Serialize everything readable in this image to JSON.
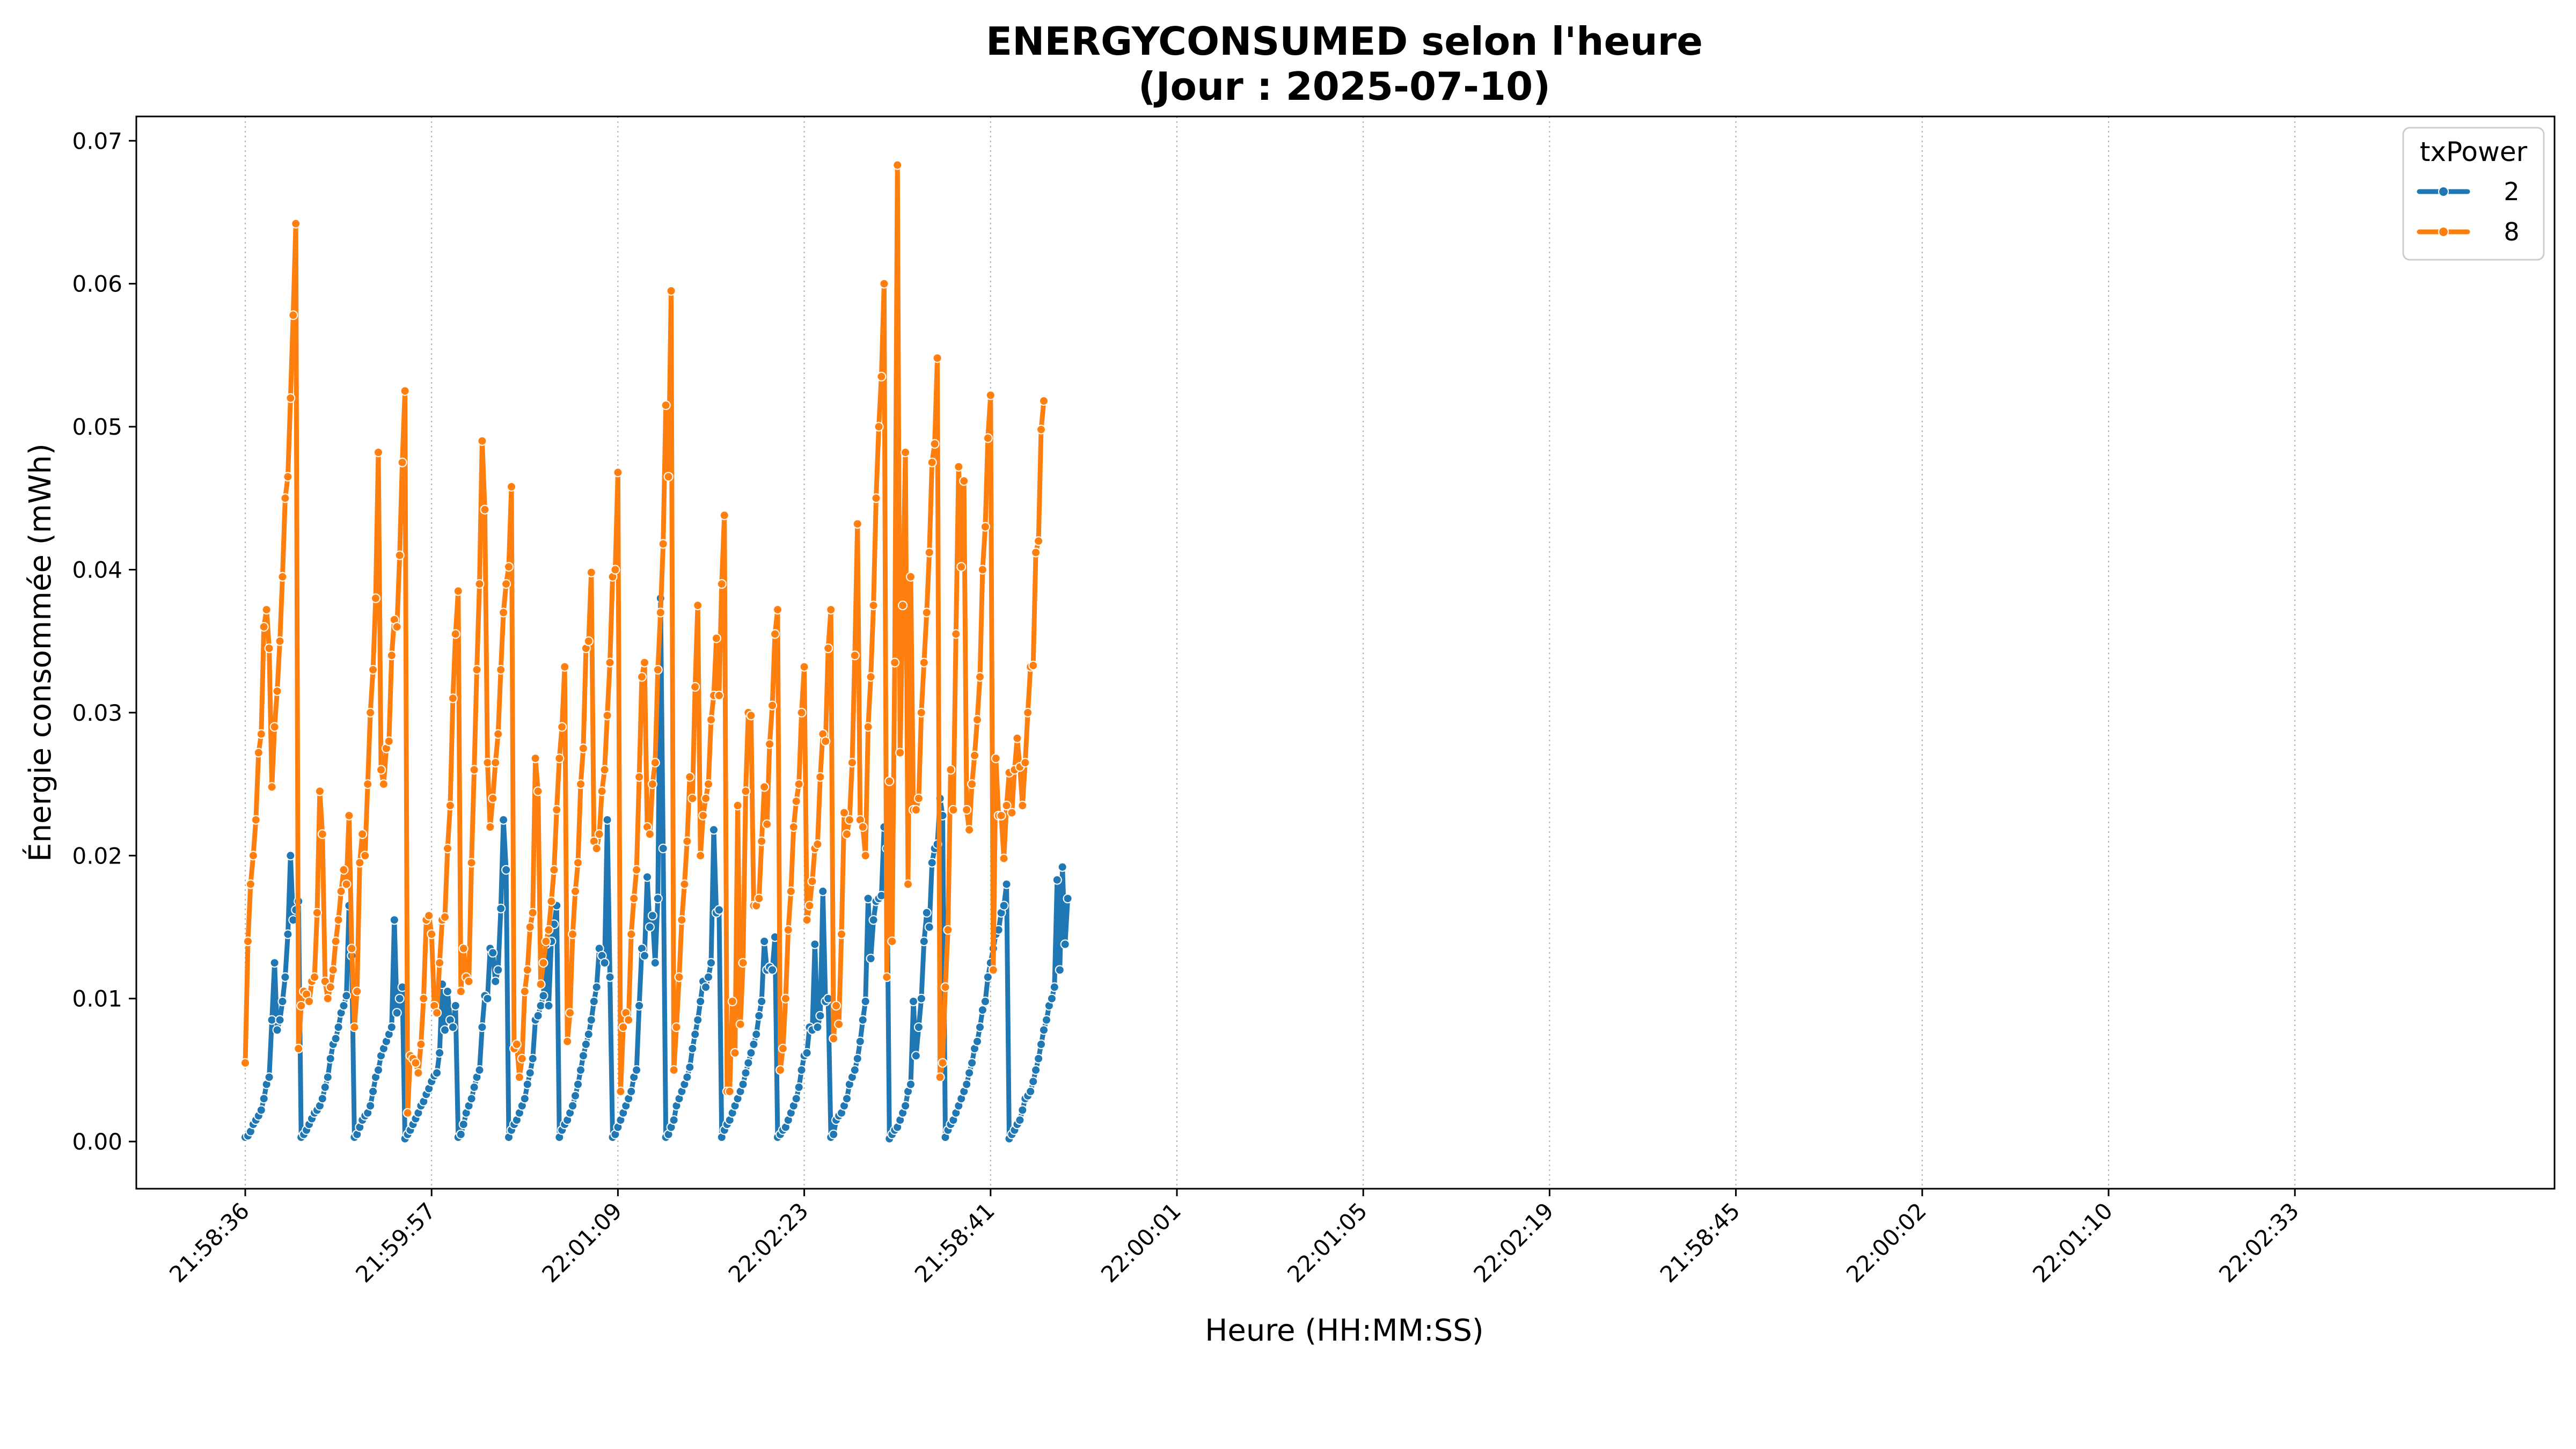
{
  "chart_data": {
    "type": "line",
    "title": "ENERGYCONSUMED selon l'heure",
    "subtitle": "(Jour : 2025-07-10)",
    "xlabel": "Heure (HH:MM:SS)",
    "ylabel": "Énergie consommée (mWh)",
    "x_tick_labels": [
      "21:58:36",
      "21:59:57",
      "22:01:09",
      "22:02:23",
      "21:58:41",
      "22:00:01",
      "22:01:05",
      "22:02:19",
      "21:58:45",
      "22:00:02",
      "22:01:10",
      "22:02:33"
    ],
    "y_ticks": [
      "0.00",
      "0.01",
      "0.02",
      "0.03",
      "0.04",
      "0.05",
      "0.06",
      "0.07"
    ],
    "ylim": [
      -0.0033,
      0.0717
    ],
    "grid": "vertical dotted at x ticks",
    "legend": {
      "title": "txPower",
      "placement": "top-right"
    },
    "series": [
      {
        "name": "2",
        "color": "#1f77b4",
        "values": [
          0.0003,
          0.0004,
          0.0007,
          0.0012,
          0.0015,
          0.0018,
          0.0022,
          0.003,
          0.004,
          0.0045,
          0.0085,
          0.0125,
          0.0078,
          0.0085,
          0.0098,
          0.0115,
          0.0145,
          0.02,
          0.0155,
          0.0162,
          0.0168,
          0.0003,
          0.0005,
          0.0008,
          0.0012,
          0.0016,
          0.002,
          0.0022,
          0.0025,
          0.003,
          0.0038,
          0.0045,
          0.0058,
          0.0068,
          0.0072,
          0.008,
          0.009,
          0.0095,
          0.0102,
          0.0165,
          0.013,
          0.0003,
          0.0005,
          0.001,
          0.0015,
          0.0018,
          0.002,
          0.0025,
          0.0035,
          0.0045,
          0.005,
          0.006,
          0.0065,
          0.007,
          0.0075,
          0.008,
          0.0155,
          0.009,
          0.01,
          0.0108,
          0.0002,
          0.0005,
          0.0008,
          0.0012,
          0.0016,
          0.002,
          0.0025,
          0.0028,
          0.0033,
          0.0037,
          0.0042,
          0.0046,
          0.0048,
          0.0062,
          0.011,
          0.0078,
          0.0105,
          0.0085,
          0.008,
          0.0095,
          0.0003,
          0.0005,
          0.0012,
          0.002,
          0.0025,
          0.003,
          0.0038,
          0.0045,
          0.005,
          0.008,
          0.0102,
          0.01,
          0.0135,
          0.0132,
          0.0112,
          0.012,
          0.0163,
          0.0225,
          0.019,
          0.0003,
          0.0008,
          0.0012,
          0.0015,
          0.002,
          0.0025,
          0.003,
          0.004,
          0.0048,
          0.0058,
          0.0085,
          0.0088,
          0.0095,
          0.0102,
          0.0138,
          0.0095,
          0.014,
          0.0152,
          0.0165,
          0.0003,
          0.0008,
          0.0012,
          0.0015,
          0.002,
          0.0025,
          0.0032,
          0.004,
          0.005,
          0.006,
          0.0068,
          0.0075,
          0.0085,
          0.0098,
          0.0108,
          0.0135,
          0.013,
          0.0125,
          0.0225,
          0.0115,
          0.0003,
          0.0005,
          0.001,
          0.0015,
          0.002,
          0.0025,
          0.003,
          0.0035,
          0.0045,
          0.005,
          0.0095,
          0.0135,
          0.013,
          0.0185,
          0.015,
          0.0158,
          0.0125,
          0.017,
          0.038,
          0.0205,
          0.0003,
          0.0005,
          0.001,
          0.0015,
          0.0025,
          0.003,
          0.0035,
          0.004,
          0.0045,
          0.0052,
          0.0065,
          0.0075,
          0.0085,
          0.0098,
          0.0112,
          0.0108,
          0.0115,
          0.0125,
          0.0218,
          0.016,
          0.0162,
          0.0003,
          0.0008,
          0.0012,
          0.0015,
          0.002,
          0.0025,
          0.003,
          0.0035,
          0.004,
          0.0048,
          0.0055,
          0.0062,
          0.0068,
          0.0075,
          0.0088,
          0.0098,
          0.014,
          0.012,
          0.0122,
          0.012,
          0.0143,
          0.0003,
          0.0005,
          0.0008,
          0.001,
          0.0015,
          0.002,
          0.0025,
          0.003,
          0.0038,
          0.005,
          0.006,
          0.0062,
          0.008,
          0.0078,
          0.0138,
          0.008,
          0.0088,
          0.0175,
          0.0098,
          0.01,
          0.0003,
          0.0005,
          0.0015,
          0.0018,
          0.002,
          0.0025,
          0.003,
          0.004,
          0.0045,
          0.005,
          0.0058,
          0.007,
          0.0085,
          0.0098,
          0.017,
          0.0128,
          0.0155,
          0.0168,
          0.017,
          0.0172,
          0.022,
          0.0205,
          0.0002,
          0.0005,
          0.0008,
          0.001,
          0.0015,
          0.002,
          0.0025,
          0.0035,
          0.004,
          0.0098,
          0.006,
          0.008,
          0.01,
          0.014,
          0.016,
          0.015,
          0.0195,
          0.0205,
          0.0208,
          0.024,
          0.0228,
          0.0003,
          0.0008,
          0.0012,
          0.0015,
          0.002,
          0.0025,
          0.003,
          0.0035,
          0.004,
          0.0048,
          0.0055,
          0.0065,
          0.007,
          0.008,
          0.0092,
          0.0098,
          0.0115,
          0.0125,
          0.0135,
          0.0145,
          0.0148,
          0.016,
          0.0165,
          0.018,
          0.0002,
          0.0005,
          0.0008,
          0.0012,
          0.0015,
          0.0022,
          0.003,
          0.0032,
          0.0035,
          0.0042,
          0.005,
          0.0058,
          0.0068,
          0.0078,
          0.0085,
          0.0095,
          0.01,
          0.0108,
          0.0183,
          0.012,
          0.0192,
          0.0138,
          0.017
        ]
      },
      {
        "name": "8",
        "color": "#ff7f0e",
        "values": [
          0.0055,
          0.014,
          0.018,
          0.02,
          0.0225,
          0.0272,
          0.0285,
          0.036,
          0.0372,
          0.0345,
          0.0248,
          0.029,
          0.0315,
          0.035,
          0.0395,
          0.045,
          0.0465,
          0.052,
          0.0578,
          0.0642,
          0.0065,
          0.0095,
          0.0105,
          0.0103,
          0.0098,
          0.0112,
          0.0115,
          0.016,
          0.0245,
          0.0215,
          0.0112,
          0.01,
          0.0108,
          0.012,
          0.014,
          0.0155,
          0.0175,
          0.019,
          0.018,
          0.0228,
          0.0135,
          0.008,
          0.0105,
          0.0195,
          0.0215,
          0.02,
          0.025,
          0.03,
          0.033,
          0.038,
          0.0482,
          0.026,
          0.025,
          0.0275,
          0.028,
          0.034,
          0.0365,
          0.036,
          0.041,
          0.0475,
          0.0525,
          0.002,
          0.006,
          0.0058,
          0.0055,
          0.0048,
          0.0068,
          0.01,
          0.0155,
          0.0158,
          0.0145,
          0.0095,
          0.009,
          0.0125,
          0.0155,
          0.0157,
          0.0205,
          0.0235,
          0.031,
          0.0355,
          0.0385,
          0.0105,
          0.0135,
          0.0115,
          0.0112,
          0.0195,
          0.026,
          0.033,
          0.039,
          0.049,
          0.0442,
          0.0265,
          0.022,
          0.024,
          0.0265,
          0.0285,
          0.033,
          0.037,
          0.039,
          0.0402,
          0.0458,
          0.0065,
          0.0068,
          0.0045,
          0.0058,
          0.0105,
          0.012,
          0.015,
          0.016,
          0.0268,
          0.0245,
          0.011,
          0.0125,
          0.014,
          0.0148,
          0.0168,
          0.019,
          0.0232,
          0.0268,
          0.029,
          0.0332,
          0.007,
          0.009,
          0.0145,
          0.0175,
          0.0195,
          0.025,
          0.0275,
          0.0345,
          0.035,
          0.0398,
          0.021,
          0.0205,
          0.0215,
          0.0245,
          0.026,
          0.0298,
          0.0335,
          0.0395,
          0.04,
          0.0468,
          0.0035,
          0.008,
          0.009,
          0.0085,
          0.0145,
          0.017,
          0.019,
          0.0255,
          0.0325,
          0.0335,
          0.022,
          0.0215,
          0.025,
          0.0265,
          0.033,
          0.037,
          0.0418,
          0.0515,
          0.0465,
          0.0595,
          0.005,
          0.008,
          0.0115,
          0.0155,
          0.018,
          0.021,
          0.0255,
          0.024,
          0.0318,
          0.0375,
          0.02,
          0.0228,
          0.024,
          0.025,
          0.0295,
          0.0312,
          0.0352,
          0.0312,
          0.039,
          0.0438,
          0.0035,
          0.0035,
          0.0098,
          0.0062,
          0.0235,
          0.0082,
          0.0125,
          0.0245,
          0.03,
          0.0298,
          0.0165,
          0.0165,
          0.017,
          0.021,
          0.0248,
          0.0222,
          0.0278,
          0.0305,
          0.0355,
          0.0372,
          0.005,
          0.0065,
          0.01,
          0.0148,
          0.0175,
          0.022,
          0.0238,
          0.025,
          0.03,
          0.0332,
          0.0155,
          0.0165,
          0.0182,
          0.0205,
          0.0208,
          0.0255,
          0.0285,
          0.028,
          0.0345,
          0.0372,
          0.0072,
          0.0095,
          0.0082,
          0.0145,
          0.023,
          0.0215,
          0.0225,
          0.0265,
          0.034,
          0.0432,
          0.0225,
          0.022,
          0.02,
          0.029,
          0.0325,
          0.0375,
          0.045,
          0.05,
          0.0535,
          0.06,
          0.0115,
          0.0252,
          0.014,
          0.0335,
          0.0683,
          0.0272,
          0.0375,
          0.0482,
          0.018,
          0.0395,
          0.0232,
          0.0232,
          0.024,
          0.03,
          0.0335,
          0.037,
          0.0412,
          0.0475,
          0.0488,
          0.0548,
          0.0045,
          0.0055,
          0.0108,
          0.0148,
          0.026,
          0.0232,
          0.0355,
          0.0472,
          0.0402,
          0.0462,
          0.0232,
          0.0218,
          0.025,
          0.027,
          0.0295,
          0.0325,
          0.04,
          0.043,
          0.0492,
          0.0522,
          0.012,
          0.0268,
          0.0228,
          0.0228,
          0.0198,
          0.0235,
          0.0258,
          0.023,
          0.026,
          0.0282,
          0.0262,
          0.0235,
          0.0265,
          0.03,
          0.0332,
          0.0333,
          0.0412,
          0.042,
          0.0498,
          0.0518
        ]
      }
    ]
  }
}
